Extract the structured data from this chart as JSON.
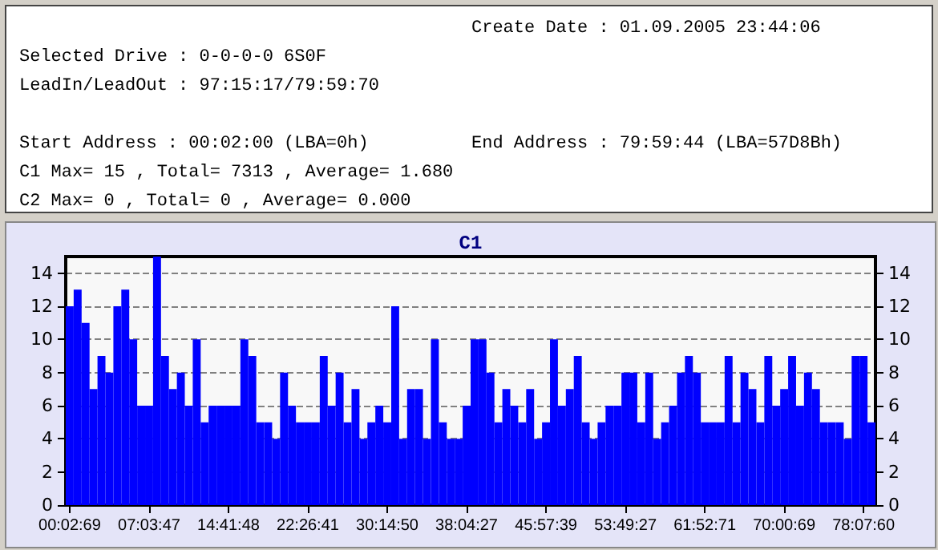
{
  "chart_data": {
    "type": "bar",
    "title": "C1",
    "annotations": [
      "Create Date : 01.09.2005 23:44:06",
      "Selected Drive : 0-0-0-0 6S0F",
      "LeadIn/LeadOut : 97:15:17/79:59:70",
      "Start Address : 00:02:00 (LBA=0h)",
      "End Address : 79:59:44 (LBA=57D8Bh)",
      "C1 Max= 15 , Total= 7313 , Average= 1.680",
      "C2 Max= 0 , Total= 0 , Average= 0.000"
    ],
    "categories": [
      "00:02:69",
      null,
      null,
      null,
      null,
      null,
      null,
      null,
      null,
      null,
      "07:03:47",
      null,
      null,
      null,
      null,
      null,
      null,
      null,
      null,
      null,
      "14:41:48",
      null,
      null,
      null,
      null,
      null,
      null,
      null,
      null,
      null,
      "22:26:41",
      null,
      null,
      null,
      null,
      null,
      null,
      null,
      null,
      null,
      "30:14:50",
      null,
      null,
      null,
      null,
      null,
      null,
      null,
      null,
      null,
      "38:04:27",
      null,
      null,
      null,
      null,
      null,
      null,
      null,
      null,
      null,
      "45:57:39",
      null,
      null,
      null,
      null,
      null,
      null,
      null,
      null,
      null,
      "53:49:27",
      null,
      null,
      null,
      null,
      null,
      null,
      null,
      null,
      null,
      "61:52:71",
      null,
      null,
      null,
      null,
      null,
      null,
      null,
      null,
      null,
      "70:00:69",
      null,
      null,
      null,
      null,
      null,
      null,
      null,
      null,
      null,
      "78:07:60",
      null
    ],
    "values": [
      12,
      13,
      11,
      7,
      9,
      8,
      12,
      13,
      10,
      6,
      6,
      15,
      9,
      7,
      8,
      6,
      10,
      5,
      6,
      6,
      6,
      6,
      10,
      9,
      5,
      5,
      4,
      8,
      6,
      5,
      5,
      5,
      9,
      6,
      8,
      5,
      7,
      4,
      5,
      6,
      5,
      12,
      4,
      7,
      7,
      4,
      10,
      5,
      4,
      4,
      6,
      10,
      10,
      8,
      5,
      7,
      6,
      5,
      7,
      4,
      5,
      10,
      6,
      7,
      9,
      5,
      4,
      5,
      6,
      6,
      8,
      8,
      5,
      8,
      4,
      5,
      6,
      8,
      9,
      8,
      5,
      5,
      5,
      9,
      5,
      8,
      7,
      5,
      9,
      6,
      7,
      9,
      6,
      8,
      7,
      5,
      5,
      5,
      4,
      9,
      9,
      5
    ],
    "color": "#0000ff",
    "ylim": [
      0,
      15
    ],
    "yticks": [
      0,
      2,
      4,
      6,
      8,
      10,
      12,
      14
    ],
    "y2lim": [
      0,
      15
    ],
    "y2ticks": [
      0,
      2,
      4,
      6,
      8,
      10,
      12,
      14
    ],
    "grid": "y"
  }
}
